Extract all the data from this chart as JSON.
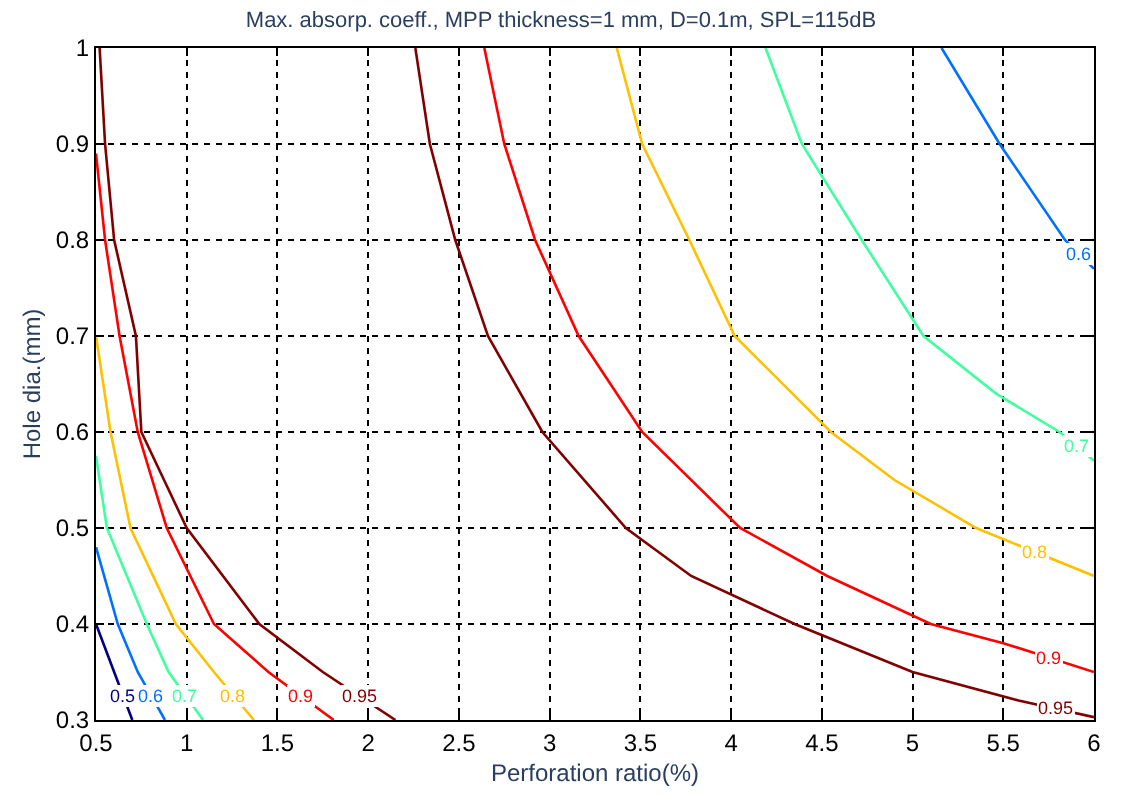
{
  "chart_data": {
    "type": "line",
    "title": "Max. absorp. coeff., MPP thickness=1 mm, D=0.1m, SPL=115dB",
    "xlabel": "Perforation ratio(%)",
    "ylabel": "Hole dia.(mm)",
    "xlim": [
      0.5,
      6
    ],
    "ylim": [
      0.3,
      1
    ],
    "xticks": [
      0.5,
      1,
      1.5,
      2,
      2.5,
      3,
      3.5,
      4,
      4.5,
      5,
      5.5,
      6
    ],
    "yticks": [
      0.3,
      0.4,
      0.5,
      0.6,
      0.7,
      0.8,
      0.9,
      1
    ],
    "grid": true,
    "legend": false,
    "marker": "none",
    "line_style": "solid",
    "series": [
      {
        "name": "0.95",
        "color": "#800000",
        "x": [
          0.52,
          0.55,
          0.6,
          0.72,
          0.75,
          1.0,
          1.4,
          1.75,
          2.15
        ],
        "values": [
          1,
          0.9,
          0.8,
          0.7,
          0.6,
          0.5,
          0.4,
          0.35,
          0.3
        ]
      },
      {
        "name": "0.9",
        "color": "#ff0000",
        "x": [
          0.5,
          0.55,
          0.63,
          0.73,
          0.89,
          1.15,
          1.45,
          1.81
        ],
        "values": [
          0.89,
          0.8,
          0.7,
          0.6,
          0.5,
          0.4,
          0.35,
          0.3
        ]
      },
      {
        "name": "0.8",
        "color": "#ffc000",
        "x": [
          0.5,
          0.58,
          0.69,
          0.94,
          1.15,
          1.37
        ],
        "values": [
          0.7,
          0.6,
          0.5,
          0.4,
          0.35,
          0.3
        ]
      },
      {
        "name": "0.7",
        "color": "#40ffa0",
        "x": [
          0.5,
          0.56,
          0.78,
          0.9,
          1.09
        ],
        "values": [
          0.575,
          0.5,
          0.4,
          0.35,
          0.3
        ]
      },
      {
        "name": "0.6",
        "color": "#0070ff",
        "x": [
          0.5,
          0.62,
          0.73,
          0.88
        ],
        "values": [
          0.48,
          0.4,
          0.35,
          0.3
        ]
      },
      {
        "name": "0.5",
        "color": "#000080",
        "x": [
          0.5,
          0.6,
          0.7
        ],
        "values": [
          0.4,
          0.35,
          0.3
        ]
      },
      {
        "name": "0.95",
        "color": "#800000",
        "x": [
          2.26,
          2.34,
          2.48,
          2.66,
          2.96,
          3.42,
          3.78,
          4.35,
          5.0,
          5.59,
          6.0
        ],
        "values": [
          1,
          0.9,
          0.8,
          0.7,
          0.6,
          0.5,
          0.45,
          0.4,
          0.35,
          0.32,
          0.303
        ]
      },
      {
        "name": "0.9",
        "color": "#ff0000",
        "x": [
          2.64,
          2.75,
          2.92,
          3.16,
          3.51,
          4.05,
          4.53,
          5.1,
          5.5,
          6.0
        ],
        "values": [
          1,
          0.9,
          0.8,
          0.7,
          0.6,
          0.5,
          0.45,
          0.4,
          0.38,
          0.35
        ]
      },
      {
        "name": "0.8",
        "color": "#ffc000",
        "x": [
          3.37,
          3.51,
          3.77,
          4.02,
          4.55,
          4.9,
          5.35,
          6.0
        ],
        "values": [
          1,
          0.9,
          0.8,
          0.7,
          0.6,
          0.55,
          0.5,
          0.45
        ]
      },
      {
        "name": "0.7",
        "color": "#40ffa0",
        "x": [
          4.19,
          4.39,
          4.72,
          5.06,
          5.46,
          5.81,
          6.0
        ],
        "values": [
          1,
          0.9,
          0.8,
          0.7,
          0.64,
          0.6,
          0.57
        ]
      },
      {
        "name": "0.6",
        "color": "#0070ff",
        "x": [
          5.16,
          5.48,
          5.84,
          6.0
        ],
        "values": [
          1,
          0.9,
          0.8,
          0.77
        ]
      }
    ]
  }
}
